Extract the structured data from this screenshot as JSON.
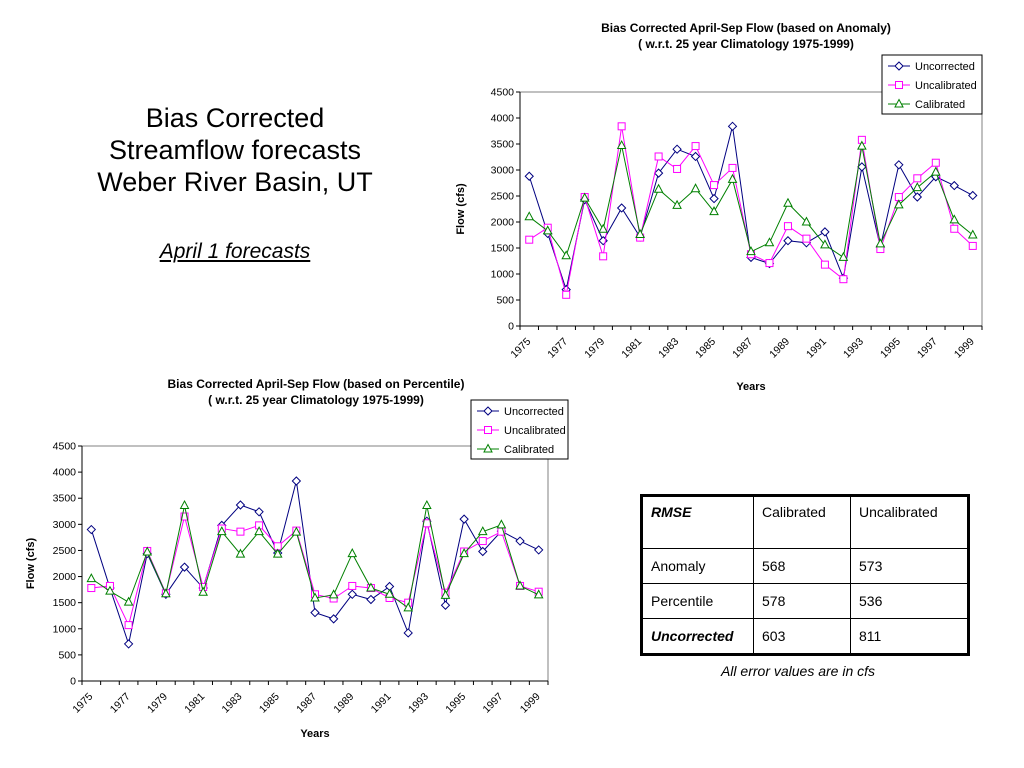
{
  "slide": {
    "title_lines": [
      "Bias Corrected",
      "Streamflow forecasts",
      "Weber River Basin, UT"
    ],
    "subtitle": "April 1 forecasts",
    "footnote": "All error values are in cfs"
  },
  "table": {
    "headers": [
      "RMSE",
      "Calibrated",
      "Uncalibrated"
    ],
    "rows": [
      [
        "Anomaly",
        "568",
        "573"
      ],
      [
        "Percentile",
        "578",
        "536"
      ],
      [
        "Uncorrected",
        "603",
        "811"
      ]
    ]
  },
  "colors": {
    "uncorrected": "#000080",
    "uncalibrated": "#ff00ff",
    "calibrated": "#008000"
  },
  "chart_data": [
    {
      "type": "line",
      "title": [
        "Bias Corrected April-Sep Flow (based on Anomaly)",
        "( w.r.t. 25 year Climatology 1975-1999)"
      ],
      "xlabel": "Years",
      "ylabel": "Flow (cfs)",
      "ylim": [
        0,
        4500
      ],
      "yticks": [
        0,
        500,
        1000,
        1500,
        2000,
        2500,
        3000,
        3500,
        4000,
        4500
      ],
      "x": [
        1975,
        1976,
        1977,
        1978,
        1979,
        1980,
        1981,
        1982,
        1983,
        1984,
        1985,
        1986,
        1987,
        1988,
        1989,
        1990,
        1991,
        1992,
        1993,
        1994,
        1995,
        1996,
        1997,
        1998,
        1999
      ],
      "xtick_labels": [
        "1975",
        "1977",
        "1979",
        "1981",
        "1983",
        "1985",
        "1987",
        "1989",
        "1991",
        "1993",
        "1995",
        "1997",
        "1999"
      ],
      "legend": "top-right",
      "grid": false,
      "series": [
        {
          "name": "Uncorrected",
          "marker": "diamond",
          "values": [
            2880,
            1780,
            700,
            2430,
            1640,
            2270,
            1710,
            2940,
            3400,
            3260,
            2450,
            3840,
            1320,
            1200,
            1640,
            1600,
            1810,
            920,
            3060,
            1520,
            3100,
            2480,
            2870,
            2700,
            2510
          ]
        },
        {
          "name": "Uncalibrated",
          "marker": "square",
          "values": [
            1660,
            1890,
            600,
            2480,
            1340,
            3840,
            1700,
            3260,
            3020,
            3460,
            2710,
            3040,
            1380,
            1210,
            1920,
            1680,
            1180,
            900,
            3580,
            1480,
            2480,
            2840,
            3140,
            1870,
            1540
          ]
        },
        {
          "name": "Calibrated",
          "marker": "triangle",
          "values": [
            2100,
            1830,
            1350,
            2460,
            1860,
            3470,
            1760,
            2630,
            2320,
            2640,
            2200,
            2820,
            1430,
            1600,
            2360,
            2000,
            1560,
            1320,
            3460,
            1580,
            2330,
            2660,
            2960,
            2040,
            1750
          ]
        }
      ]
    },
    {
      "type": "line",
      "title": [
        "Bias Corrected April-Sep Flow (based on Percentile)",
        "( w.r.t. 25 year Climatology 1975-1999)"
      ],
      "xlabel": "Years",
      "ylabel": "Flow (cfs)",
      "ylim": [
        0,
        4500
      ],
      "yticks": [
        0,
        500,
        1000,
        1500,
        2000,
        2500,
        3000,
        3500,
        4000,
        4500
      ],
      "x": [
        1975,
        1976,
        1977,
        1978,
        1979,
        1980,
        1981,
        1982,
        1983,
        1984,
        1985,
        1986,
        1987,
        1988,
        1989,
        1990,
        1991,
        1992,
        1993,
        1994,
        1995,
        1996,
        1997,
        1998,
        1999
      ],
      "xtick_labels": [
        "1975",
        "1977",
        "1979",
        "1981",
        "1983",
        "1985",
        "1987",
        "1989",
        "1991",
        "1993",
        "1995",
        "1997",
        "1999"
      ],
      "legend": "top-right",
      "grid": false,
      "series": [
        {
          "name": "Uncorrected",
          "marker": "diamond",
          "values": [
            2900,
            1780,
            710,
            2440,
            1660,
            2180,
            1780,
            2980,
            3370,
            3240,
            2450,
            3830,
            1310,
            1190,
            1660,
            1560,
            1810,
            920,
            3060,
            1450,
            3100,
            2480,
            2870,
            2680,
            2510
          ]
        },
        {
          "name": "Uncalibrated",
          "marker": "square",
          "values": [
            1780,
            1820,
            1070,
            2490,
            1680,
            3150,
            1800,
            2920,
            2860,
            2980,
            2580,
            2880,
            1660,
            1580,
            1820,
            1780,
            1590,
            1500,
            3020,
            1690,
            2480,
            2680,
            2860,
            1820,
            1710
          ]
        },
        {
          "name": "Calibrated",
          "marker": "triangle",
          "values": [
            1960,
            1720,
            1510,
            2470,
            1670,
            3360,
            1700,
            2860,
            2430,
            2860,
            2430,
            2850,
            1590,
            1650,
            2440,
            1780,
            1660,
            1400,
            3360,
            1640,
            2440,
            2860,
            2990,
            1820,
            1650
          ]
        }
      ]
    }
  ]
}
